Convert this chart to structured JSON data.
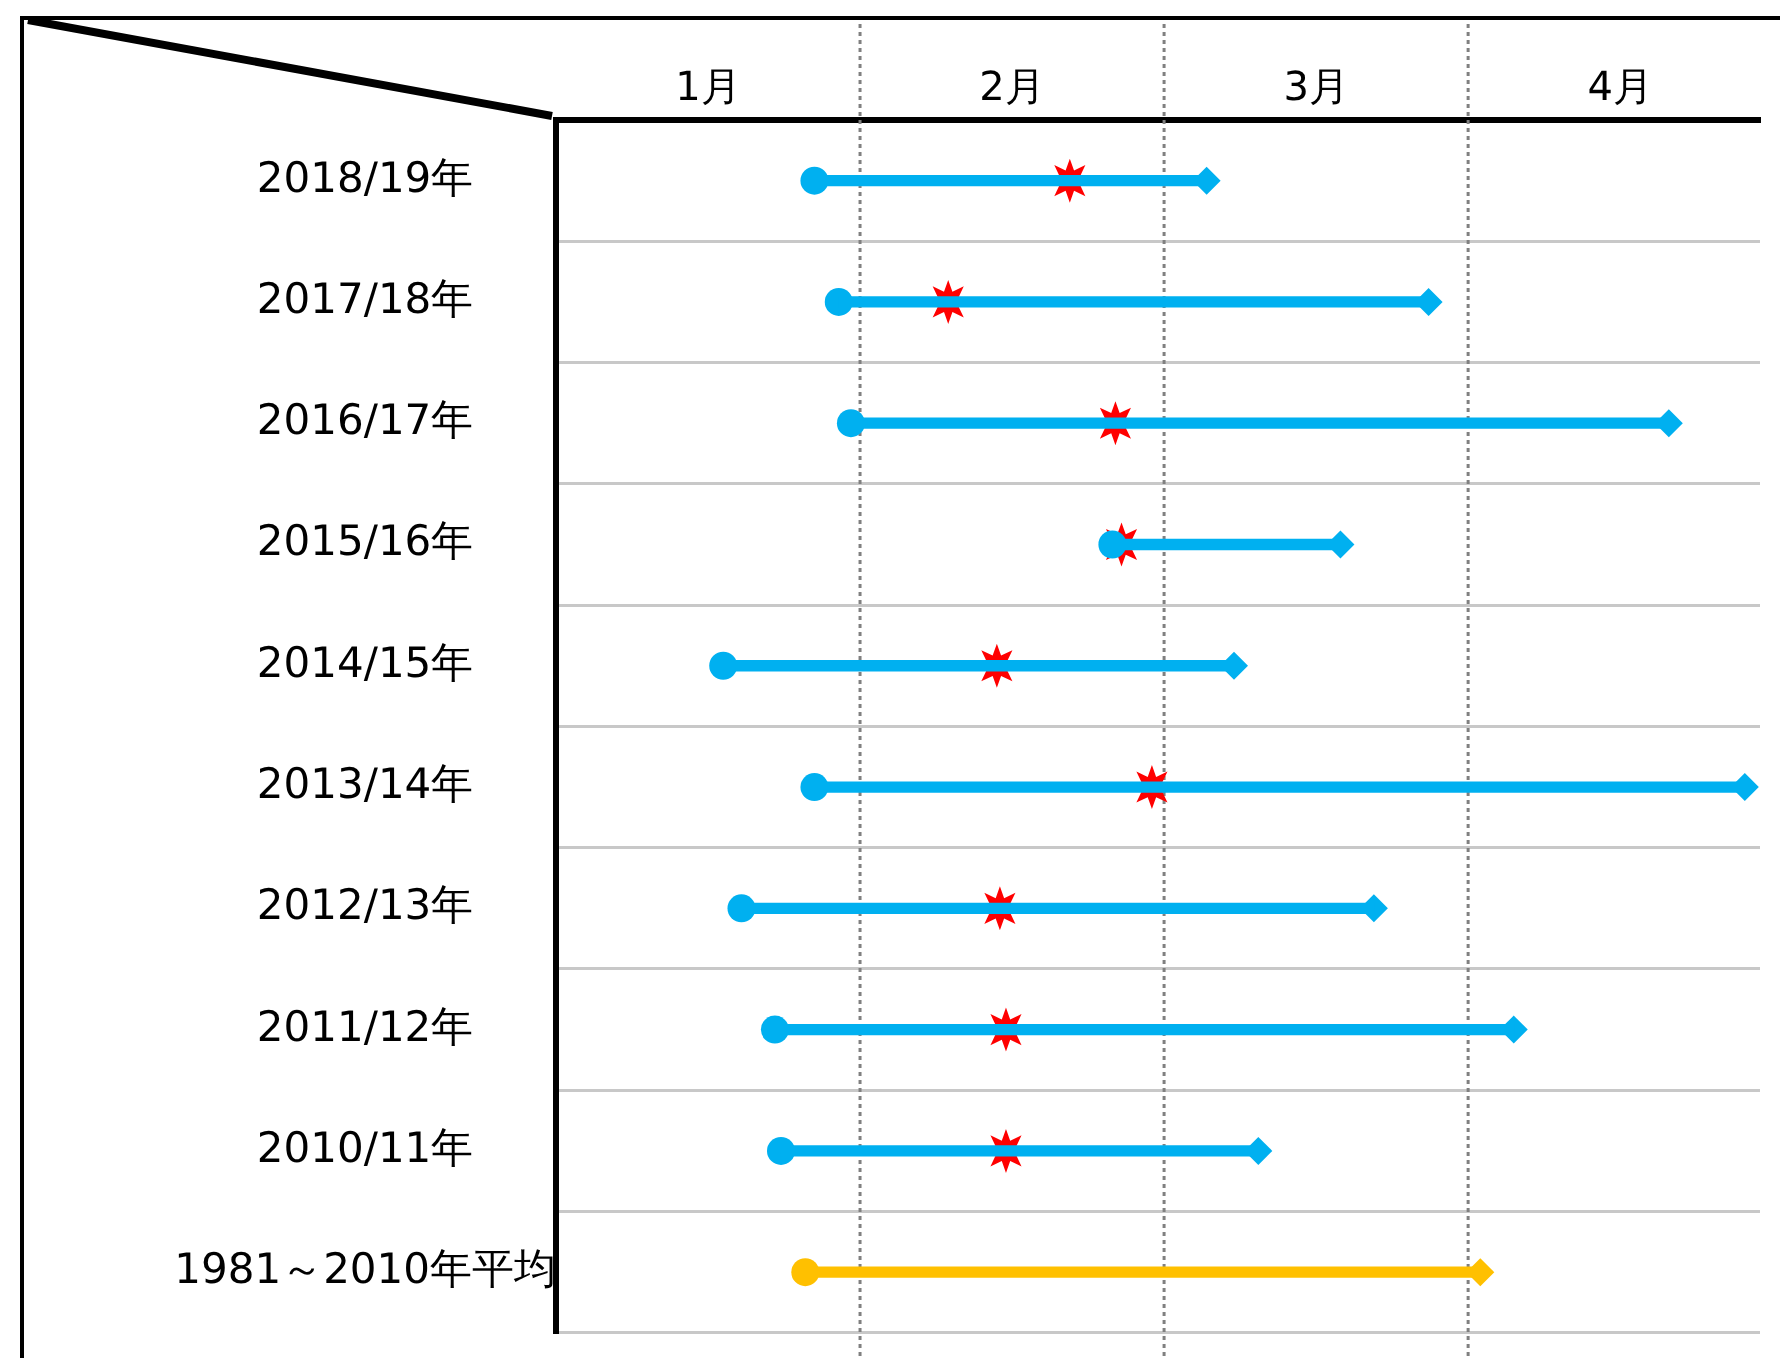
{
  "chart_data": {
    "type": "bar",
    "orientation": "horizontal",
    "categories": [
      "2018/19年",
      "2017/18年",
      "2016/17年",
      "2015/16年",
      "2014/15年",
      "2013/14年",
      "2012/13年",
      "2011/12年",
      "2010/11年",
      "1981～2010年平均"
    ],
    "series": [
      {
        "type": "bar",
        "colors": [
          "#00b0f0",
          "#00b0f0",
          "#00b0f0",
          "#00b0f0",
          "#00b0f0",
          "#00b0f0",
          "#00b0f0",
          "#00b0f0",
          "#00b0f0",
          "#ffc000"
        ],
        "base": [
          1.85,
          1.93,
          1.97,
          2.83,
          1.55,
          1.85,
          1.61,
          1.72,
          1.74,
          1.82
        ],
        "values": [
          1.29,
          1.94,
          2.69,
          0.75,
          1.68,
          3.06,
          2.08,
          2.43,
          1.57,
          2.22
        ]
      },
      {
        "type": "scatter",
        "marker": "circle",
        "colors": [
          "#00b0f0",
          "#00b0f0",
          "#00b0f0",
          "#00b0f0",
          "#00b0f0",
          "#00b0f0",
          "#00b0f0",
          "#00b0f0",
          "#00b0f0",
          "#ffc000"
        ],
        "values": [
          1.85,
          1.93,
          1.97,
          2.83,
          1.55,
          1.85,
          1.61,
          1.72,
          1.74,
          1.82
        ]
      },
      {
        "type": "scatter",
        "marker": "diamond",
        "colors": [
          "#00b0f0",
          "#00b0f0",
          "#00b0f0",
          "#00b0f0",
          "#00b0f0",
          "#00b0f0",
          "#00b0f0",
          "#00b0f0",
          "#00b0f0",
          "#ffc000"
        ],
        "values": [
          3.14,
          3.87,
          4.66,
          3.58,
          3.23,
          4.91,
          3.69,
          4.15,
          3.31,
          4.04
        ]
      },
      {
        "type": "scatter",
        "marker": "star",
        "color": "#ff0000",
        "values": [
          2.69,
          2.29,
          2.84,
          2.86,
          2.45,
          2.96,
          2.46,
          2.48,
          2.48,
          null
        ]
      }
    ],
    "xlim": [
      1,
      4.96
    ],
    "xticks": [
      {
        "value": 1.5,
        "label": "1月"
      },
      {
        "value": 2.5,
        "label": "2月"
      },
      {
        "value": 3.5,
        "label": "3月"
      },
      {
        "value": 4.5,
        "label": "4月"
      }
    ],
    "ref_lines": [
      {
        "axis": "x",
        "value": 2,
        "color": "#808080",
        "line_style": "dotted"
      },
      {
        "axis": "x",
        "value": 3,
        "color": "#808080",
        "line_style": "dotted"
      },
      {
        "axis": "x",
        "value": 4,
        "color": "#808080",
        "line_style": "dotted"
      }
    ],
    "grid": "y",
    "legend": false
  }
}
